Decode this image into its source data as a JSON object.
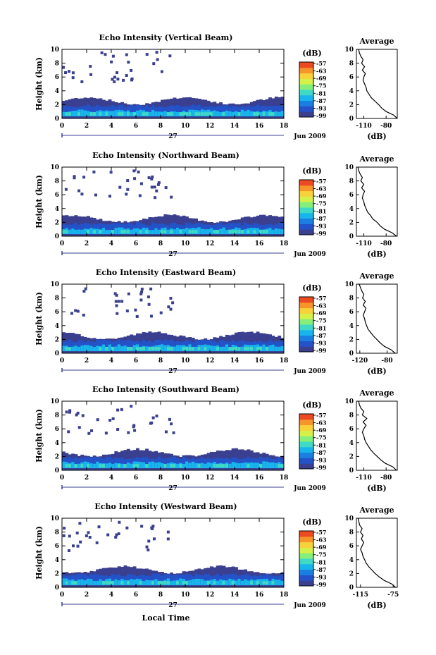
{
  "chart_data": {
    "type": "heatmap",
    "x_ticks": [
      0,
      2,
      4,
      6,
      8,
      10,
      12,
      14,
      16,
      18
    ],
    "y_ticks": [
      0,
      2,
      4,
      6,
      8,
      10
    ],
    "xlim": [
      0,
      18
    ],
    "ylim": [
      0,
      10
    ],
    "day_label": "27",
    "date_label": "Jun 2009",
    "x_axis_label": "Local Time",
    "y_axis_label": "Height (km)",
    "colorbar_unit": "(dB)",
    "colorbar_ticks": [
      -57,
      -63,
      -69,
      -75,
      -81,
      -87,
      -93,
      -99
    ],
    "colorbar_colors": [
      "#3a3f8f",
      "#2452c8",
      "#1a7fe0",
      "#18b4ec",
      "#3fd9c6",
      "#86ee7a",
      "#d6f04a",
      "#f8d23a",
      "#f6952a",
      "#ec4a22"
    ],
    "average_title": "Average",
    "average_xlabel": "(dB)",
    "average_ylim": [
      0,
      10
    ],
    "panels": [
      {
        "title": "Echo Intensity (Vertical Beam)",
        "avg_ticks": [
          "-110",
          "-80"
        ],
        "avg_xlim": [
          -120,
          -65
        ],
        "avg_profile": [
          [
            -65,
            0
          ],
          [
            -70,
            0.5
          ],
          [
            -80,
            1.0
          ],
          [
            -86,
            1.5
          ],
          [
            -90,
            2.0
          ],
          [
            -95,
            2.5
          ],
          [
            -100,
            3.0
          ],
          [
            -103,
            3.5
          ],
          [
            -106,
            4.0
          ],
          [
            -107,
            4.5
          ],
          [
            -109,
            5.0
          ],
          [
            -111,
            5.5
          ],
          [
            -110,
            6.0
          ],
          [
            -108,
            6.5
          ],
          [
            -112,
            7.0
          ],
          [
            -109,
            7.5
          ],
          [
            -113,
            8.0
          ],
          [
            -111,
            8.5
          ],
          [
            -114,
            9.0
          ],
          [
            -116,
            9.5
          ],
          [
            -117,
            10
          ]
        ]
      },
      {
        "title": "Echo Intensity (Northward Beam)",
        "avg_ticks": [
          "-110",
          "-80"
        ],
        "avg_xlim": [
          -120,
          -65
        ],
        "avg_profile": [
          [
            -66,
            0
          ],
          [
            -72,
            0.5
          ],
          [
            -82,
            1.0
          ],
          [
            -88,
            1.5
          ],
          [
            -92,
            2.0
          ],
          [
            -98,
            2.5
          ],
          [
            -101,
            3.0
          ],
          [
            -105,
            3.5
          ],
          [
            -107,
            4.0
          ],
          [
            -109,
            4.5
          ],
          [
            -110,
            5.0
          ],
          [
            -112,
            5.5
          ],
          [
            -111,
            6.0
          ],
          [
            -109,
            6.5
          ],
          [
            -113,
            7.0
          ],
          [
            -110,
            7.5
          ],
          [
            -114,
            8.0
          ],
          [
            -112,
            8.5
          ],
          [
            -115,
            9.0
          ],
          [
            -117,
            9.5
          ],
          [
            -118,
            10
          ]
        ]
      },
      {
        "title": "Echo Intensity (Eastward Beam)",
        "avg_ticks": [
          "-120",
          "-80"
        ],
        "avg_xlim": [
          -125,
          -65
        ],
        "avg_profile": [
          [
            -68,
            0
          ],
          [
            -74,
            0.5
          ],
          [
            -84,
            1.0
          ],
          [
            -90,
            1.5
          ],
          [
            -95,
            2.0
          ],
          [
            -100,
            2.5
          ],
          [
            -104,
            3.0
          ],
          [
            -108,
            3.5
          ],
          [
            -110,
            4.0
          ],
          [
            -112,
            4.5
          ],
          [
            -113,
            5.0
          ],
          [
            -115,
            5.5
          ],
          [
            -113,
            6.0
          ],
          [
            -111,
            6.5
          ],
          [
            -115,
            7.0
          ],
          [
            -112,
            7.5
          ],
          [
            -116,
            8.0
          ],
          [
            -114,
            8.5
          ],
          [
            -117,
            9.0
          ],
          [
            -119,
            9.5
          ],
          [
            -121,
            10
          ]
        ]
      },
      {
        "title": "Echo Intensity (Southward Beam)",
        "avg_ticks": [
          "-110",
          "-80"
        ],
        "avg_xlim": [
          -120,
          -65
        ],
        "avg_profile": [
          [
            -66,
            0
          ],
          [
            -71,
            0.5
          ],
          [
            -81,
            1.0
          ],
          [
            -87,
            1.5
          ],
          [
            -92,
            2.0
          ],
          [
            -97,
            2.5
          ],
          [
            -101,
            3.0
          ],
          [
            -104,
            3.5
          ],
          [
            -107,
            4.0
          ],
          [
            -109,
            4.5
          ],
          [
            -110,
            5.0
          ],
          [
            -112,
            5.5
          ],
          [
            -110,
            6.0
          ],
          [
            -107,
            6.5
          ],
          [
            -111,
            7.0
          ],
          [
            -106,
            7.5
          ],
          [
            -112,
            8.0
          ],
          [
            -110,
            8.5
          ],
          [
            -114,
            9.0
          ],
          [
            -116,
            9.5
          ],
          [
            -117,
            10
          ]
        ]
      },
      {
        "title": "Echo Intensity (Westward Beam)",
        "avg_ticks": [
          "-115",
          "-75"
        ],
        "avg_xlim": [
          -120,
          -70
        ],
        "avg_profile": [
          [
            -72,
            0
          ],
          [
            -77,
            0.5
          ],
          [
            -86,
            1.0
          ],
          [
            -92,
            1.5
          ],
          [
            -97,
            2.0
          ],
          [
            -101,
            2.5
          ],
          [
            -105,
            3.0
          ],
          [
            -108,
            3.5
          ],
          [
            -110,
            4.0
          ],
          [
            -112,
            4.5
          ],
          [
            -113,
            5.0
          ],
          [
            -115,
            5.5
          ],
          [
            -113,
            6.0
          ],
          [
            -111,
            6.5
          ],
          [
            -114,
            7.0
          ],
          [
            -112,
            7.5
          ],
          [
            -115,
            8.0
          ],
          [
            -113,
            8.5
          ],
          [
            -116,
            9.0
          ],
          [
            -117,
            9.5
          ],
          [
            -118,
            10
          ]
        ]
      }
    ],
    "band_style": {
      "dark": "#3a3f8f",
      "mid": "#2452c8",
      "light": "#18b4ec",
      "bright": "#3fd9c6"
    }
  }
}
